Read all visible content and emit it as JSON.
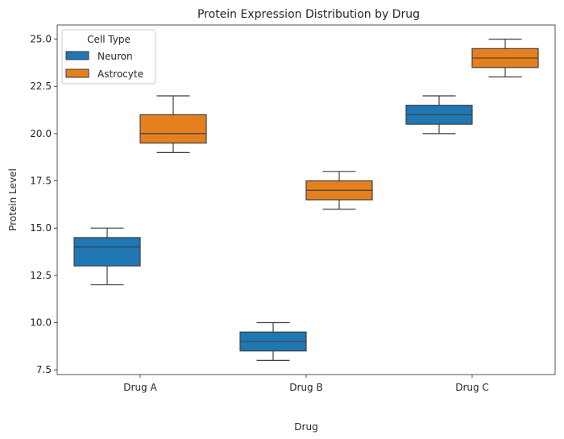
{
  "chart_data": {
    "type": "box",
    "title": "Protein Expression Distribution by Drug",
    "xlabel": "Drug",
    "ylabel": "Protein Level",
    "categories": [
      "Drug A",
      "Drug B",
      "Drug C"
    ],
    "ylim": [
      7.25,
      25.75
    ],
    "yticks": [
      7.5,
      10.0,
      12.5,
      15.0,
      17.5,
      20.0,
      22.5,
      25.0
    ],
    "ytick_labels": [
      "7.5",
      "10.0",
      "12.5",
      "15.0",
      "17.5",
      "20.0",
      "22.5",
      "25.0"
    ],
    "grid": false,
    "legend": {
      "title": "Cell Type",
      "placement": "top-left"
    },
    "series": [
      {
        "name": "Neuron",
        "color": "#1f77b4",
        "boxes": [
          {
            "min": 12.0,
            "q1": 13.0,
            "median": 14.0,
            "q3": 14.5,
            "max": 15.0
          },
          {
            "min": 8.0,
            "q1": 8.5,
            "median": 9.0,
            "q3": 9.5,
            "max": 10.0
          },
          {
            "min": 20.0,
            "q1": 20.5,
            "median": 21.0,
            "q3": 21.5,
            "max": 22.0
          }
        ]
      },
      {
        "name": "Astrocyte",
        "color": "#e6801f",
        "boxes": [
          {
            "min": 19.0,
            "q1": 19.5,
            "median": 20.0,
            "q3": 21.0,
            "max": 22.0
          },
          {
            "min": 16.0,
            "q1": 16.5,
            "median": 17.0,
            "q3": 17.5,
            "max": 18.0
          },
          {
            "min": 23.0,
            "q1": 23.5,
            "median": 24.0,
            "q3": 24.5,
            "max": 25.0
          }
        ]
      }
    ]
  }
}
